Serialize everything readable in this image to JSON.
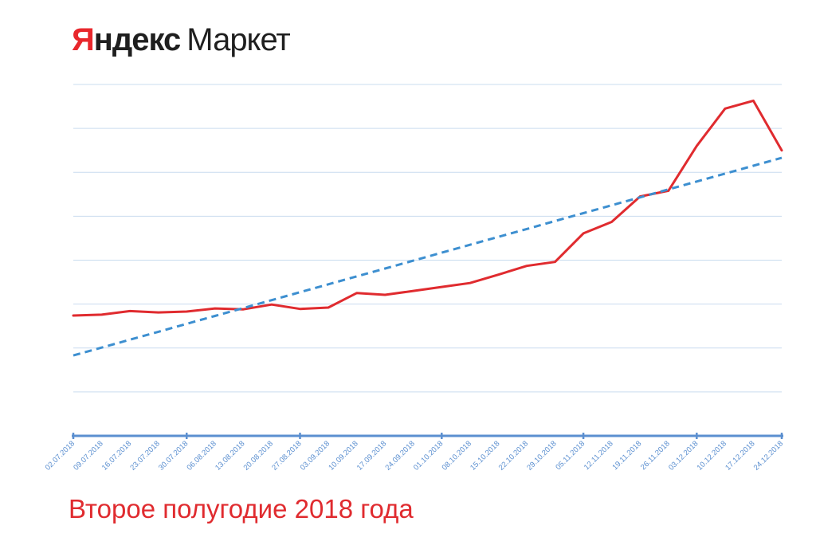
{
  "logo": {
    "brand_first": "Я",
    "brand_rest": "ндекс",
    "brand_product": "Маркет"
  },
  "caption": "Второе полугодие 2018 года",
  "colors": {
    "series": "#e02b2f",
    "trend": "#3d8fd0",
    "axis": "#5b8fd0",
    "grid": "#c9dcef"
  },
  "chart_data": {
    "type": "line",
    "title": "",
    "xlabel": "",
    "ylabel": "",
    "ylim": [
      0,
      8
    ],
    "grid": true,
    "legend": "none",
    "x": [
      "02.07.2018",
      "09.07.2018",
      "16.07.2018",
      "23.07.2018",
      "30.07.2018",
      "06.08.2018",
      "13.08.2018",
      "20.08.2018",
      "27.08.2018",
      "03.09.2018",
      "10.09.2018",
      "17.09.2018",
      "24.09.2018",
      "01.10.2018",
      "08.10.2018",
      "15.10.2018",
      "22.10.2018",
      "29.10.2018",
      "05.11.2018",
      "12.11.2018",
      "19.11.2018",
      "26.11.2018",
      "03.12.2018",
      "10.12.2018",
      "17.12.2018",
      "24.12.2018"
    ],
    "series": [
      {
        "style": "solid",
        "values": [
          2.74,
          2.76,
          2.84,
          2.81,
          2.83,
          2.9,
          2.88,
          2.99,
          2.89,
          2.92,
          3.25,
          3.21,
          3.3,
          3.39,
          3.48,
          3.67,
          3.87,
          3.96,
          4.61,
          4.87,
          5.45,
          5.58,
          6.6,
          7.45,
          7.63,
          6.5
        ]
      },
      {
        "style": "dashed",
        "trend": "linear",
        "values": [
          1.83,
          2.01,
          2.19,
          2.37,
          2.55,
          2.73,
          2.91,
          3.09,
          3.27,
          3.45,
          3.63,
          3.81,
          3.99,
          4.17,
          4.35,
          4.53,
          4.71,
          4.89,
          5.07,
          5.25,
          5.43,
          5.61,
          5.79,
          5.97,
          6.15,
          6.33
        ]
      }
    ]
  }
}
